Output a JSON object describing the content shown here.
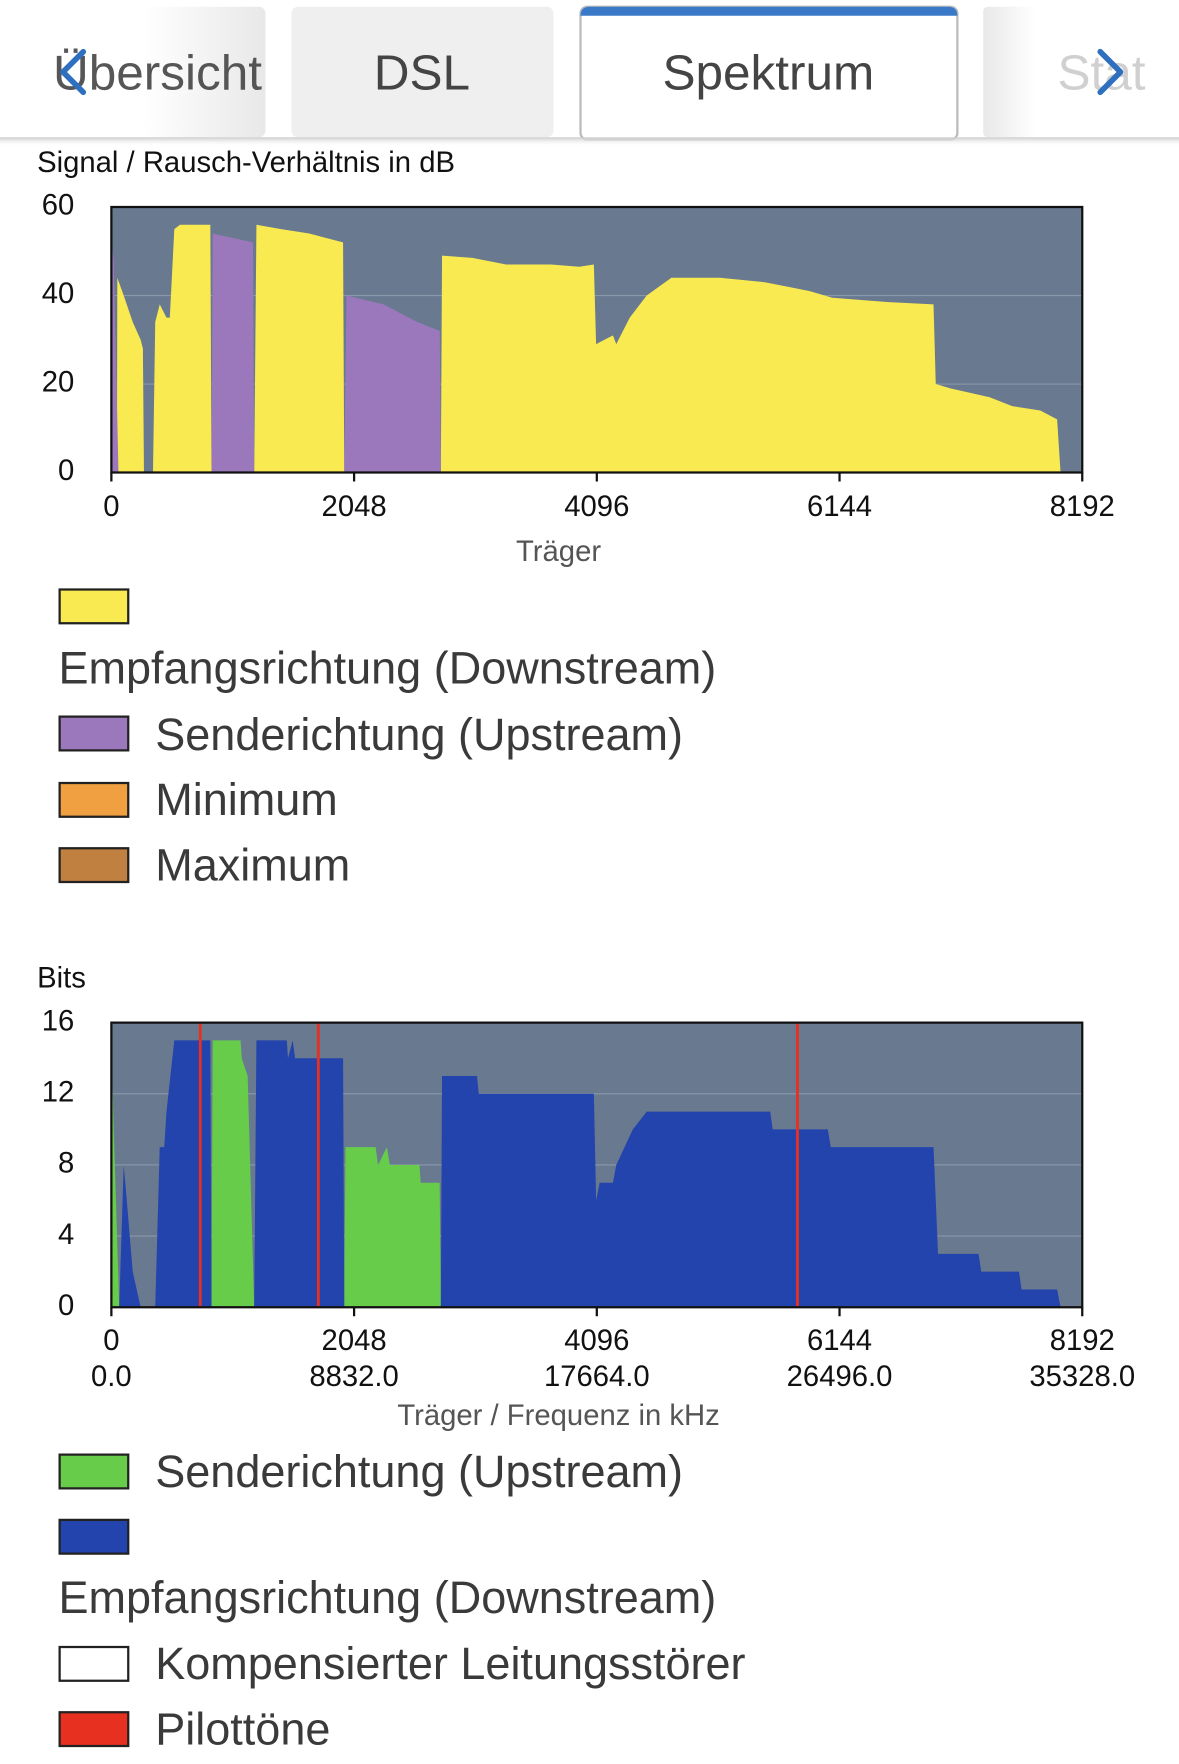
{
  "tabs": [
    "Übersicht",
    "DSL",
    "Spektrum",
    "Statistik"
  ],
  "chart_data": [
    {
      "type": "area",
      "title": "Signal / Rausch-Verhältnis in dB",
      "xlabel": "Träger",
      "xlim": [
        0,
        8192
      ],
      "xticks": [
        0,
        2048,
        4096,
        6144,
        8192
      ],
      "ylim": [
        0,
        60
      ],
      "yticks": [
        0,
        20,
        40,
        60
      ],
      "grid": true,
      "series": [
        {
          "name": "Empfangsrichtung (Downstream)",
          "color": "#f8ea50",
          "x": [
            47,
            50,
            104,
            180,
            247,
            266,
            275,
            351,
            370,
            408,
            465,
            493,
            531,
            579,
            835,
            845,
            1205,
            1224,
            1433,
            1670,
            1813,
            1955,
            1965,
            2780,
            2790,
            3046,
            3331,
            3711,
            3948,
            4071,
            4090,
            4232,
            4260,
            4374,
            4517,
            4725,
            5134,
            5513,
            5703,
            5893,
            6083,
            6557,
            6937,
            6956,
            7079,
            7411,
            7601,
            7838,
            7980,
            8009
          ],
          "values": [
            0,
            44,
            40,
            34,
            30,
            28,
            0,
            0,
            34,
            38,
            35,
            35,
            55,
            56,
            56,
            0,
            0,
            56,
            55,
            54,
            53,
            52,
            0,
            0,
            49,
            48.5,
            47,
            47,
            46.5,
            47,
            29,
            31,
            29,
            35,
            40,
            44,
            44,
            43,
            42,
            41,
            39.5,
            38.5,
            38,
            20,
            19,
            17,
            15,
            14,
            12,
            0
          ]
        },
        {
          "name": "Senderichtung (Upstream)",
          "color": "#9a78bb",
          "x": [
            0,
            2,
            20,
            60,
            845,
            855,
            1195,
            1205,
            1965,
            1984,
            2297,
            2581,
            2771,
            2780
          ],
          "values": [
            0,
            52,
            48,
            0,
            0,
            54,
            52,
            0,
            0,
            40,
            38,
            34,
            32,
            0
          ]
        },
        {
          "name": "Minimum",
          "color": "#f0a040",
          "x": [],
          "values": []
        },
        {
          "name": "Maximum",
          "color": "#c08040",
          "x": [],
          "values": []
        }
      ]
    },
    {
      "type": "area",
      "title": "Bits",
      "xlabel": "Träger / Frequenz in kHz",
      "xlim": [
        0,
        8192
      ],
      "xticks": [
        0,
        2048,
        4096,
        6144,
        8192
      ],
      "x2lim": [
        0,
        35328
      ],
      "x2ticks": [
        {
          "value": 0,
          "label": "0.0"
        },
        {
          "value": 8832,
          "label": "8832.0"
        },
        {
          "value": 17664,
          "label": "17664.0"
        },
        {
          "value": 26496,
          "label": "26496.0"
        },
        {
          "value": 35328,
          "label": "35328.0"
        }
      ],
      "ylim": [
        0,
        16
      ],
      "yticks": [
        0,
        4,
        8,
        12,
        16
      ],
      "grid": true,
      "series": [
        {
          "name": "Senderichtung (Upstream)",
          "color": "#66cc4a",
          "x": [
            0,
            2,
            66,
            845,
            855,
            1090,
            1100,
            1150,
            1205,
            1965,
            1975,
            2230,
            2250,
            2325,
            2350,
            2600,
            2610,
            2770,
            2780
          ],
          "values": [
            0,
            14,
            0,
            0,
            15,
            15,
            14,
            13,
            0,
            0,
            9,
            9,
            8,
            9,
            8,
            8,
            7,
            7,
            0
          ]
        },
        {
          "name": "Empfangsrichtung (Downstream)",
          "color": "#2343ad",
          "x": [
            66,
            104,
            130,
            180,
            247,
            370,
            408,
            446,
            465,
            531,
            835,
            845,
            1205,
            1224,
            1480,
            1490,
            1530,
            1550,
            1955,
            1965,
            2780,
            2790,
            3085,
            3100,
            3996,
            4071,
            4090,
            4120,
            4232,
            4260,
            4400,
            4517,
            5559,
            5580,
            6045,
            6070,
            6937,
            6975,
            7317,
            7340,
            7658,
            7680,
            7980,
            8009
          ],
          "values": [
            0,
            8,
            6,
            2,
            0,
            0,
            9,
            9,
            11,
            15,
            15,
            0,
            0,
            15,
            15,
            14,
            15,
            14,
            14,
            0,
            0,
            13,
            13,
            12,
            12,
            12,
            6,
            7,
            7,
            8,
            10,
            11,
            11,
            10,
            10,
            9,
            9,
            3,
            3,
            2,
            2,
            1,
            1,
            0
          ]
        },
        {
          "name": "Kompensierter Leitungsstörer",
          "color": "#ffffff",
          "x": [],
          "values": []
        },
        {
          "name": "Pilottöne",
          "color": "#e83020",
          "x": [
            750,
            1746,
            5789
          ]
        }
      ]
    }
  ]
}
